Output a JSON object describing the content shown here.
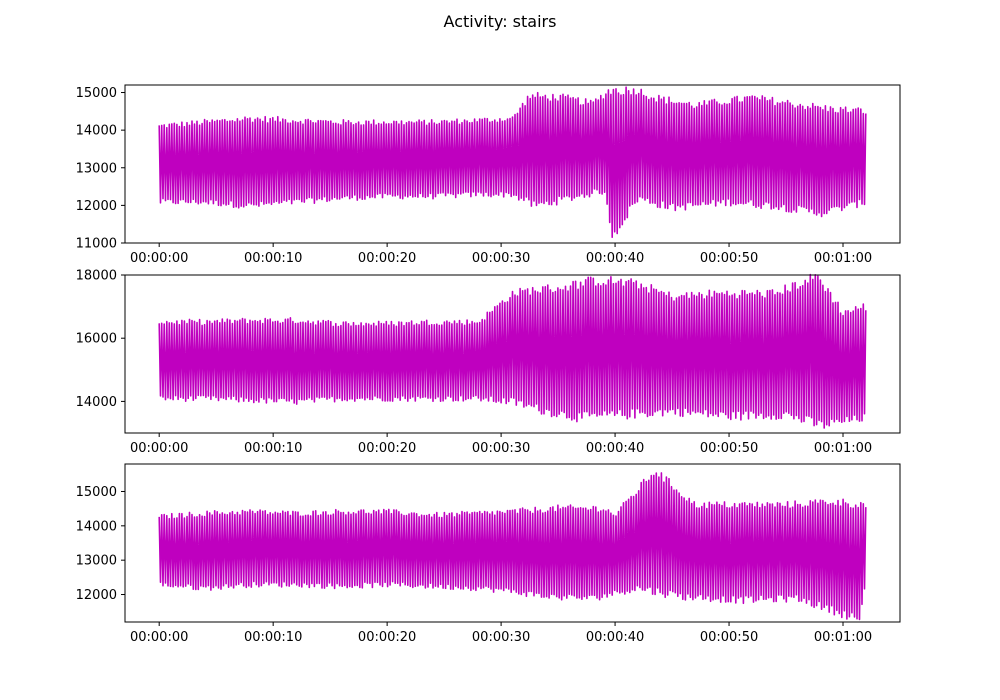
{
  "figure": {
    "title": "Activity: stairs",
    "line_color": "#bf00bf"
  },
  "chart_data": [
    {
      "type": "line",
      "title": "",
      "xlabel": "",
      "ylabel": "",
      "xlim": [
        -3,
        65
      ],
      "ylim": [
        11000,
        15200
      ],
      "x_ticks": [
        0,
        10,
        20,
        30,
        40,
        50,
        60
      ],
      "x_tick_labels": [
        "00:00:00",
        "00:00:10",
        "00:00:20",
        "00:00:30",
        "00:00:40",
        "00:00:50",
        "00:01:00"
      ],
      "y_ticks": [
        11000,
        12000,
        13000,
        14000,
        15000
      ],
      "y_tick_labels": [
        "11000",
        "12000",
        "13000",
        "14000",
        "15000"
      ],
      "grid": false,
      "x_range_seconds": [
        0,
        62
      ],
      "peaks": [
        {
          "x": 0,
          "y": 14100
        },
        {
          "x": 4,
          "y": 14200
        },
        {
          "x": 8,
          "y": 14300
        },
        {
          "x": 12,
          "y": 14250
        },
        {
          "x": 16,
          "y": 14200
        },
        {
          "x": 20,
          "y": 14200
        },
        {
          "x": 24,
          "y": 14200
        },
        {
          "x": 28,
          "y": 14250
        },
        {
          "x": 31,
          "y": 14300
        },
        {
          "x": 32.5,
          "y": 14900
        },
        {
          "x": 35.5,
          "y": 14850
        },
        {
          "x": 38,
          "y": 14700
        },
        {
          "x": 39.5,
          "y": 15050
        },
        {
          "x": 42,
          "y": 15050
        },
        {
          "x": 43.5,
          "y": 14850
        },
        {
          "x": 47,
          "y": 14650
        },
        {
          "x": 52,
          "y": 14850
        },
        {
          "x": 56.5,
          "y": 14650
        },
        {
          "x": 59,
          "y": 14550
        },
        {
          "x": 62,
          "y": 14500
        }
      ],
      "troughs": [
        {
          "x": 0,
          "y": 12100
        },
        {
          "x": 4,
          "y": 12100
        },
        {
          "x": 8,
          "y": 12000
        },
        {
          "x": 12,
          "y": 12100
        },
        {
          "x": 16,
          "y": 12200
        },
        {
          "x": 20,
          "y": 12250
        },
        {
          "x": 24,
          "y": 12250
        },
        {
          "x": 28,
          "y": 12300
        },
        {
          "x": 31,
          "y": 12300
        },
        {
          "x": 33,
          "y": 12000
        },
        {
          "x": 36,
          "y": 12200
        },
        {
          "x": 39,
          "y": 12400
        },
        {
          "x": 39.8,
          "y": 11200
        },
        {
          "x": 42,
          "y": 12200
        },
        {
          "x": 45,
          "y": 11950
        },
        {
          "x": 50,
          "y": 12100
        },
        {
          "x": 54,
          "y": 12000
        },
        {
          "x": 58,
          "y": 11800
        },
        {
          "x": 62,
          "y": 12100
        }
      ]
    },
    {
      "type": "line",
      "title": "",
      "xlabel": "",
      "ylabel": "",
      "xlim": [
        -3,
        65
      ],
      "ylim": [
        13000,
        18000
      ],
      "x_ticks": [
        0,
        10,
        20,
        30,
        40,
        50,
        60
      ],
      "x_tick_labels": [
        "00:00:00",
        "00:00:10",
        "00:00:20",
        "00:00:30",
        "00:00:40",
        "00:00:50",
        "00:01:00"
      ],
      "y_ticks": [
        14000,
        16000,
        18000
      ],
      "y_tick_labels": [
        "14000",
        "16000",
        "18000"
      ],
      "grid": false,
      "x_range_seconds": [
        0,
        62
      ],
      "peaks": [
        {
          "x": 0,
          "y": 16500
        },
        {
          "x": 4,
          "y": 16500
        },
        {
          "x": 8,
          "y": 16550
        },
        {
          "x": 12,
          "y": 16550
        },
        {
          "x": 16,
          "y": 16450
        },
        {
          "x": 20,
          "y": 16450
        },
        {
          "x": 24,
          "y": 16500
        },
        {
          "x": 28,
          "y": 16500
        },
        {
          "x": 31,
          "y": 17400
        },
        {
          "x": 32.5,
          "y": 17500
        },
        {
          "x": 35.5,
          "y": 17600
        },
        {
          "x": 38,
          "y": 17800
        },
        {
          "x": 39.5,
          "y": 17800
        },
        {
          "x": 42,
          "y": 17700
        },
        {
          "x": 45,
          "y": 17300
        },
        {
          "x": 49,
          "y": 17400
        },
        {
          "x": 54,
          "y": 17400
        },
        {
          "x": 57.8,
          "y": 17950
        },
        {
          "x": 60,
          "y": 16800
        },
        {
          "x": 62,
          "y": 17000
        }
      ],
      "troughs": [
        {
          "x": 0,
          "y": 14100
        },
        {
          "x": 4,
          "y": 14100
        },
        {
          "x": 8,
          "y": 14050
        },
        {
          "x": 12,
          "y": 14000
        },
        {
          "x": 16,
          "y": 14100
        },
        {
          "x": 20,
          "y": 14100
        },
        {
          "x": 24,
          "y": 14100
        },
        {
          "x": 28,
          "y": 14100
        },
        {
          "x": 31,
          "y": 14000
        },
        {
          "x": 34,
          "y": 13700
        },
        {
          "x": 37,
          "y": 13500
        },
        {
          "x": 41,
          "y": 13600
        },
        {
          "x": 45,
          "y": 13700
        },
        {
          "x": 50,
          "y": 13550
        },
        {
          "x": 55,
          "y": 13600
        },
        {
          "x": 58,
          "y": 13250
        },
        {
          "x": 62,
          "y": 13500
        }
      ]
    },
    {
      "type": "line",
      "title": "",
      "xlabel": "",
      "ylabel": "",
      "xlim": [
        -3,
        65
      ],
      "ylim": [
        11200,
        15800
      ],
      "x_ticks": [
        0,
        10,
        20,
        30,
        40,
        50,
        60
      ],
      "x_tick_labels": [
        "00:00:00",
        "00:00:10",
        "00:00:20",
        "00:00:30",
        "00:00:40",
        "00:00:50",
        "00:01:00"
      ],
      "y_ticks": [
        12000,
        13000,
        14000,
        15000
      ],
      "y_tick_labels": [
        "12000",
        "13000",
        "14000",
        "15000"
      ],
      "grid": false,
      "x_range_seconds": [
        0,
        62
      ],
      "peaks": [
        {
          "x": 0,
          "y": 14250
        },
        {
          "x": 4,
          "y": 14350
        },
        {
          "x": 8,
          "y": 14400
        },
        {
          "x": 12,
          "y": 14350
        },
        {
          "x": 16,
          "y": 14400
        },
        {
          "x": 20,
          "y": 14400
        },
        {
          "x": 24,
          "y": 14300
        },
        {
          "x": 28,
          "y": 14350
        },
        {
          "x": 31,
          "y": 14400
        },
        {
          "x": 35,
          "y": 14500
        },
        {
          "x": 39,
          "y": 14500
        },
        {
          "x": 40,
          "y": 14300
        },
        {
          "x": 43.5,
          "y": 15600
        },
        {
          "x": 47,
          "y": 14600
        },
        {
          "x": 51,
          "y": 14600
        },
        {
          "x": 55,
          "y": 14600
        },
        {
          "x": 59,
          "y": 14700
        },
        {
          "x": 62,
          "y": 14600
        }
      ],
      "troughs": [
        {
          "x": 0,
          "y": 12300
        },
        {
          "x": 4,
          "y": 12200
        },
        {
          "x": 8,
          "y": 12300
        },
        {
          "x": 12,
          "y": 12300
        },
        {
          "x": 16,
          "y": 12250
        },
        {
          "x": 20,
          "y": 12300
        },
        {
          "x": 24,
          "y": 12250
        },
        {
          "x": 28,
          "y": 12200
        },
        {
          "x": 31,
          "y": 12100
        },
        {
          "x": 34,
          "y": 11950
        },
        {
          "x": 38,
          "y": 11900
        },
        {
          "x": 42,
          "y": 12200
        },
        {
          "x": 46,
          "y": 11950
        },
        {
          "x": 51,
          "y": 11850
        },
        {
          "x": 56,
          "y": 11900
        },
        {
          "x": 60,
          "y": 11450
        },
        {
          "x": 61.5,
          "y": 11300
        },
        {
          "x": 62,
          "y": 12300
        }
      ]
    }
  ]
}
